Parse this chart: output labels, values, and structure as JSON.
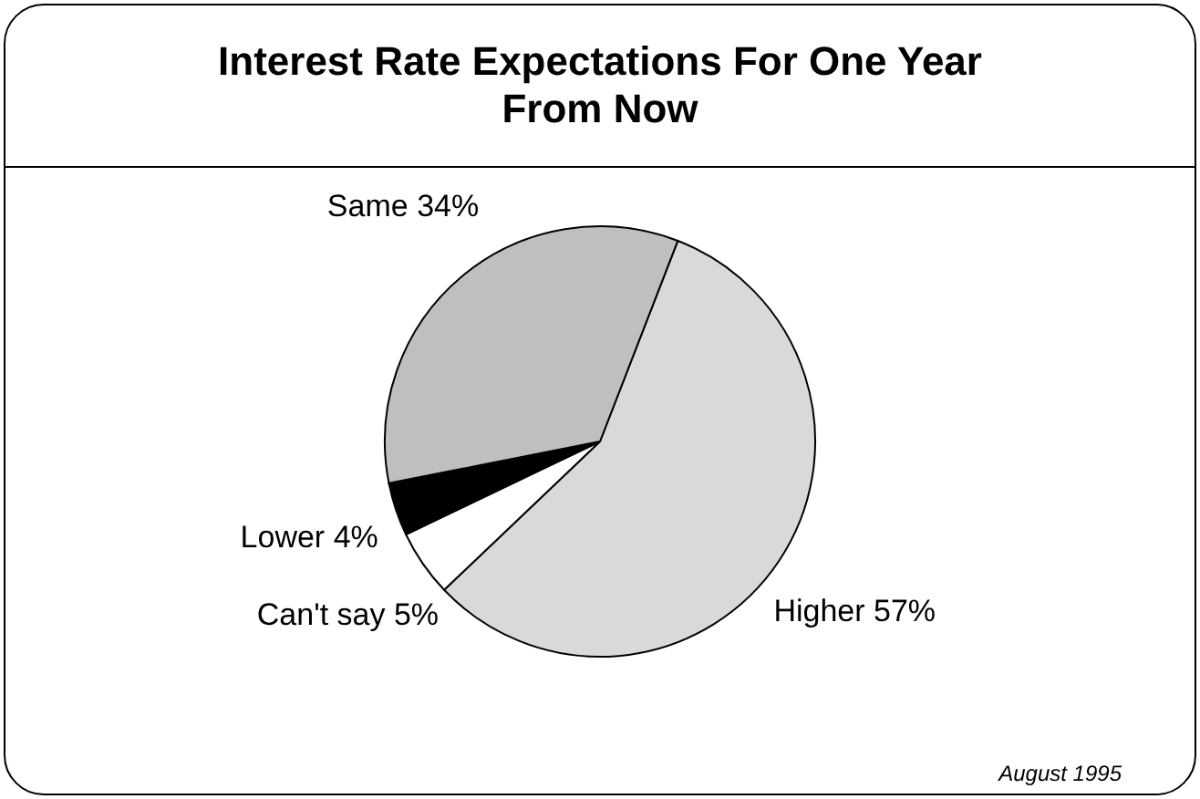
{
  "chart_data": {
    "type": "pie",
    "title": "Interest Rate Expectations For One Year From Now",
    "categories": [
      "Higher",
      "Can't say",
      "Lower",
      "Same"
    ],
    "values": [
      57,
      5,
      4,
      34
    ],
    "value_labels": [
      "57%",
      "5%",
      "4%",
      "34%"
    ],
    "colors": [
      "#d9d9d9",
      "#ffffff",
      "#000000",
      "#bfbfbf"
    ],
    "annotations": [
      "August 1995"
    ]
  }
}
